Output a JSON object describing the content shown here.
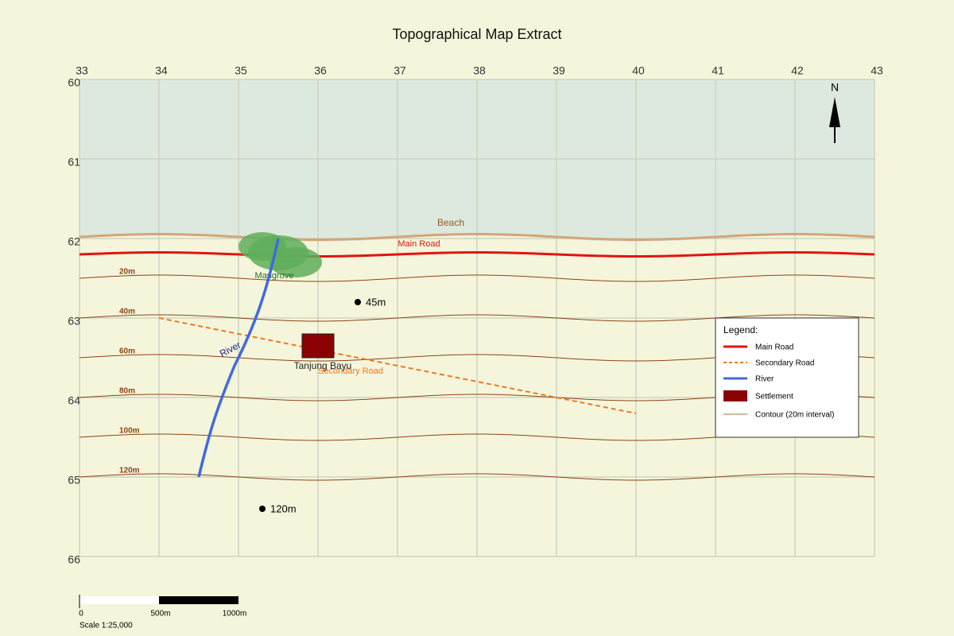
{
  "title": "Topographical Map Extract",
  "grid": {
    "eastings": [
      33,
      34,
      35,
      36,
      37,
      38,
      39,
      40,
      41,
      42,
      43
    ],
    "northings": [
      60,
      61,
      62,
      63,
      64,
      65,
      66
    ]
  },
  "features": {
    "beach": "Beach",
    "main_road": "Main Road",
    "mangrove": "Mangrove",
    "river": "River",
    "settlement": "Tanjung Bayu",
    "secondary_road": "Secondary Road"
  },
  "contours": [
    "20m",
    "40m",
    "60m",
    "80m",
    "100m",
    "120m"
  ],
  "spot_heights": [
    "45m",
    "120m"
  ],
  "north": "N",
  "legend": {
    "title": "Legend:",
    "items": [
      "Main Road",
      "Secondary Road",
      "River",
      "Settlement",
      "Contour (20m interval)"
    ]
  },
  "scale": {
    "ticks": [
      "0",
      "500m",
      "1000m"
    ],
    "label": "Scale 1:25,000"
  }
}
